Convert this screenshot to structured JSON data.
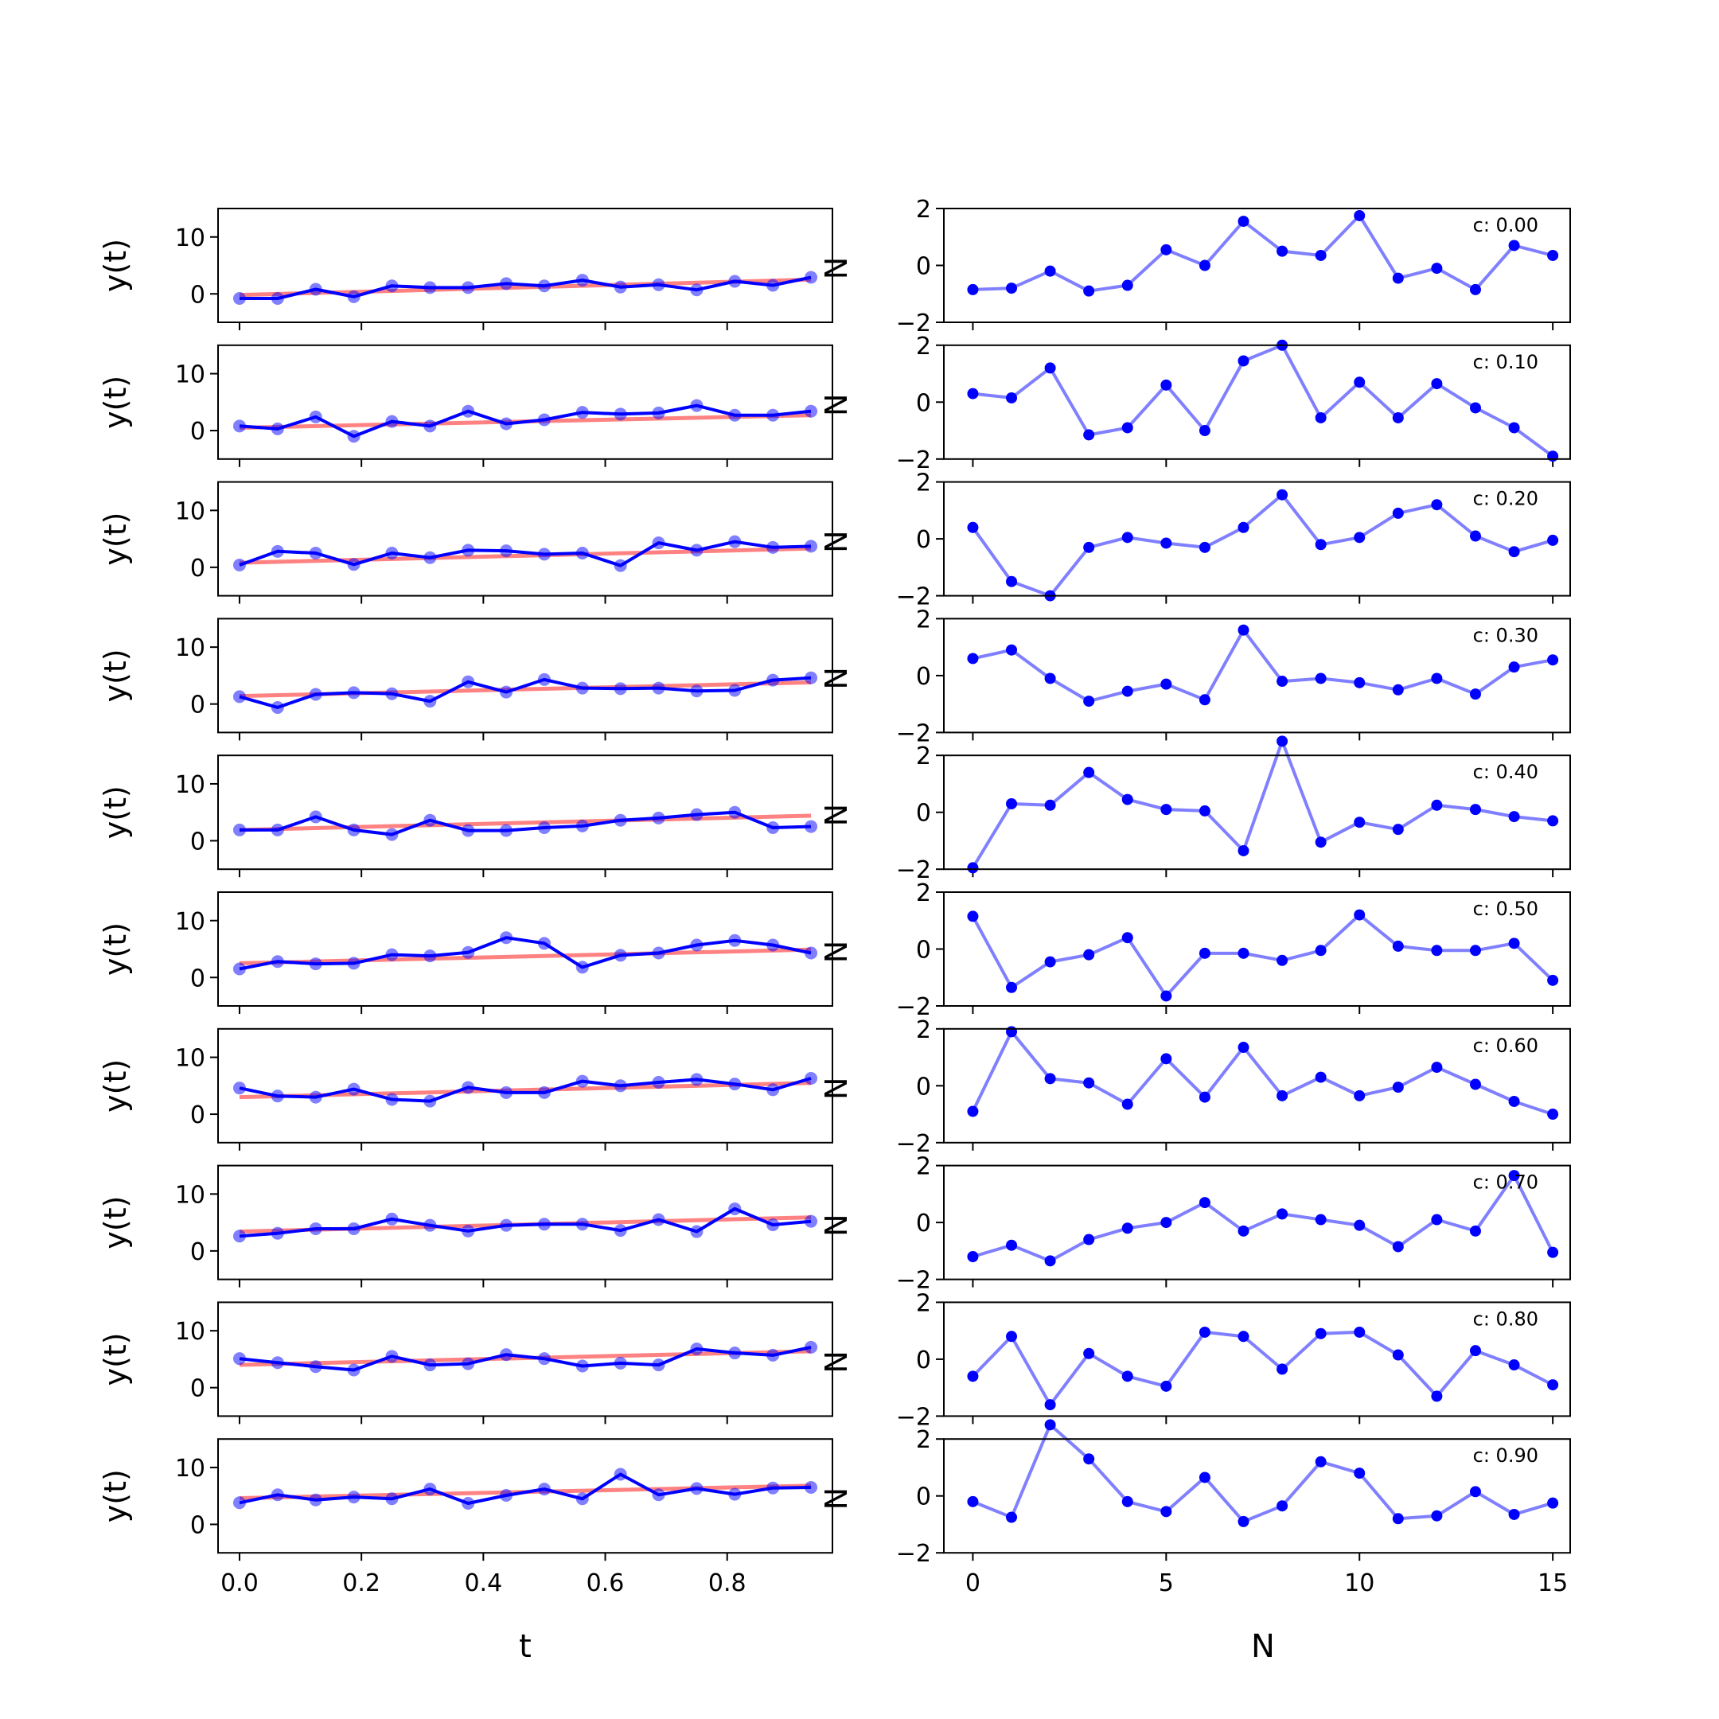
{
  "chart_data": [
    {
      "type": "line",
      "panel": "left",
      "x_axis": {
        "label": "t",
        "range": [
          -0.0352,
          0.9727
        ],
        "ticks": [
          0.0,
          0.2,
          0.4,
          0.6,
          0.8
        ],
        "tick_labels": [
          "0.0",
          "0.2",
          "0.4",
          "0.6",
          "0.8"
        ]
      },
      "y_axis": {
        "label": "y(t)",
        "range": [
          -5,
          15
        ],
        "ticks": [
          0,
          10
        ],
        "tick_labels": [
          "0",
          "10"
        ]
      },
      "grid": false,
      "side_label": "N",
      "x": [
        0.0,
        0.0625,
        0.125,
        0.1875,
        0.25,
        0.3125,
        0.375,
        0.4375,
        0.5,
        0.5625,
        0.625,
        0.6875,
        0.75,
        0.8125,
        0.875,
        0.9375
      ],
      "series_colors": {
        "data": "#0000ff",
        "fit": "#ff4d4d"
      },
      "subplots": [
        {
          "c": 0.0,
          "fit": [
            -0.2,
            2.5
          ],
          "y": [
            -0.8,
            -0.8,
            0.8,
            -0.5,
            1.4,
            1.1,
            1.1,
            1.8,
            1.4,
            2.4,
            1.2,
            1.6,
            0.7,
            2.2,
            1.5,
            2.9
          ]
        },
        {
          "c": 0.1,
          "fit": [
            0.5,
            2.7
          ],
          "y": [
            0.8,
            0.3,
            2.4,
            -1.0,
            1.6,
            0.8,
            3.4,
            1.2,
            1.9,
            3.2,
            2.9,
            3.1,
            4.4,
            2.7,
            2.7,
            3.4
          ]
        },
        {
          "c": 0.2,
          "fit": [
            0.8,
            3.3
          ],
          "y": [
            0.4,
            2.8,
            2.5,
            0.5,
            2.5,
            1.7,
            3.0,
            2.9,
            2.3,
            2.5,
            0.3,
            4.3,
            3.0,
            4.5,
            3.5,
            3.7
          ]
        },
        {
          "c": 0.3,
          "fit": [
            1.4,
            3.8
          ],
          "y": [
            1.3,
            -0.6,
            1.7,
            2.0,
            1.8,
            0.5,
            3.9,
            2.1,
            4.3,
            2.8,
            2.7,
            2.8,
            2.3,
            2.4,
            4.2,
            4.6
          ]
        },
        {
          "c": 0.4,
          "fit": [
            1.9,
            4.4
          ],
          "y": [
            1.9,
            1.9,
            4.2,
            1.9,
            1.1,
            3.6,
            1.8,
            1.8,
            2.3,
            2.6,
            3.6,
            4.0,
            4.6,
            5.0,
            2.3,
            2.5
          ]
        },
        {
          "c": 0.5,
          "fit": [
            2.5,
            4.9
          ],
          "y": [
            1.5,
            2.8,
            2.4,
            2.5,
            4.0,
            3.8,
            4.4,
            7.0,
            6.0,
            1.8,
            3.9,
            4.3,
            5.7,
            6.5,
            5.7,
            4.3
          ]
        },
        {
          "c": 0.6,
          "fit": [
            3.0,
            5.5
          ],
          "y": [
            4.6,
            3.2,
            3.0,
            4.4,
            2.6,
            2.3,
            4.7,
            3.8,
            3.8,
            5.8,
            5.0,
            5.6,
            6.1,
            5.3,
            4.3,
            6.3
          ]
        },
        {
          "c": 0.7,
          "fit": [
            3.4,
            5.9
          ],
          "y": [
            2.6,
            3.1,
            3.9,
            3.9,
            5.6,
            4.5,
            3.5,
            4.5,
            4.7,
            4.7,
            3.6,
            5.5,
            3.4,
            7.4,
            4.6,
            5.2
          ]
        },
        {
          "c": 0.8,
          "fit": [
            4.0,
            6.4
          ],
          "y": [
            5.1,
            4.4,
            3.7,
            3.1,
            5.5,
            4.0,
            4.2,
            5.8,
            5.1,
            3.8,
            4.3,
            4.0,
            6.8,
            6.1,
            5.7,
            7.1
          ]
        },
        {
          "c": 0.9,
          "fit": [
            4.6,
            6.8
          ],
          "y": [
            3.8,
            5.2,
            4.3,
            4.8,
            4.5,
            6.2,
            3.7,
            5.1,
            6.2,
            4.5,
            8.8,
            5.2,
            6.3,
            5.3,
            6.4,
            6.5
          ]
        }
      ]
    },
    {
      "type": "line",
      "panel": "right",
      "x_axis": {
        "label": "N",
        "range": [
          -0.75,
          15.45
        ],
        "ticks": [
          0,
          5,
          10,
          15
        ],
        "tick_labels": [
          "0",
          "5",
          "10",
          "15"
        ]
      },
      "y_axis": {
        "range": [
          -2,
          2
        ],
        "ticks": [
          -2,
          0,
          2
        ],
        "tick_labels": [
          "−2",
          "0",
          "2"
        ]
      },
      "grid": false,
      "x": [
        0,
        1,
        2,
        3,
        4,
        5,
        6,
        7,
        8,
        9,
        10,
        11,
        12,
        13,
        14,
        15
      ],
      "series_colors": {
        "data": "#0000ff",
        "line": "#7f7fff"
      },
      "subplots": [
        {
          "label": "c: 0.00",
          "y": [
            -0.85,
            -0.8,
            -0.2,
            -0.9,
            -0.7,
            0.55,
            0.0,
            1.55,
            0.5,
            0.35,
            1.75,
            -0.45,
            -0.1,
            -0.85,
            0.7,
            0.35
          ]
        },
        {
          "label": "c: 0.10",
          "y": [
            0.3,
            0.15,
            1.2,
            -1.15,
            -0.9,
            0.6,
            -1.0,
            1.45,
            2.0,
            -0.55,
            0.7,
            -0.55,
            0.65,
            -0.2,
            -0.9,
            -1.9
          ]
        },
        {
          "label": "c: 0.20",
          "y": [
            0.4,
            -1.5,
            -2.0,
            -0.3,
            0.05,
            -0.15,
            -0.3,
            0.4,
            1.55,
            -0.2,
            0.05,
            0.9,
            1.2,
            0.1,
            -0.45,
            -0.05
          ]
        },
        {
          "label": "c: 0.30",
          "y": [
            0.6,
            0.9,
            -0.1,
            -0.9,
            -0.55,
            -0.3,
            -0.85,
            1.6,
            -0.2,
            -0.1,
            -0.25,
            -0.5,
            -0.1,
            -0.65,
            0.3,
            0.55
          ]
        },
        {
          "label": "c: 0.40",
          "y": [
            -1.95,
            0.3,
            0.25,
            1.4,
            0.45,
            0.1,
            0.05,
            -1.35,
            2.5,
            -1.05,
            -0.35,
            -0.6,
            0.25,
            0.1,
            -0.15,
            -0.3
          ]
        },
        {
          "label": "c: 0.50",
          "y": [
            1.15,
            -1.35,
            -0.45,
            -0.2,
            0.4,
            -1.65,
            -0.15,
            -0.15,
            -0.4,
            -0.05,
            1.2,
            0.1,
            -0.05,
            -0.05,
            0.2,
            -1.1
          ]
        },
        {
          "label": "c: 0.60",
          "y": [
            -0.9,
            1.9,
            0.25,
            0.1,
            -0.65,
            0.95,
            -0.4,
            1.35,
            -0.35,
            0.3,
            -0.35,
            -0.05,
            0.65,
            0.05,
            -0.55,
            -1.0
          ]
        },
        {
          "label": "c: 0.70",
          "y": [
            -1.2,
            -0.8,
            -1.35,
            -0.6,
            -0.2,
            0.0,
            0.7,
            -0.3,
            0.3,
            0.1,
            -0.1,
            -0.85,
            0.1,
            -0.3,
            1.65,
            -1.05
          ]
        },
        {
          "label": "c: 0.80",
          "y": [
            -0.6,
            0.8,
            -1.6,
            0.2,
            -0.6,
            -0.95,
            0.95,
            0.8,
            -0.35,
            0.9,
            0.95,
            0.15,
            -1.3,
            0.3,
            -0.2,
            -0.9
          ]
        },
        {
          "label": "c: 0.90",
          "y": [
            -0.2,
            -0.75,
            2.5,
            1.3,
            -0.2,
            -0.55,
            0.65,
            -0.9,
            -0.35,
            1.2,
            0.8,
            -0.8,
            -0.7,
            0.15,
            -0.65,
            -0.25
          ]
        }
      ]
    }
  ]
}
